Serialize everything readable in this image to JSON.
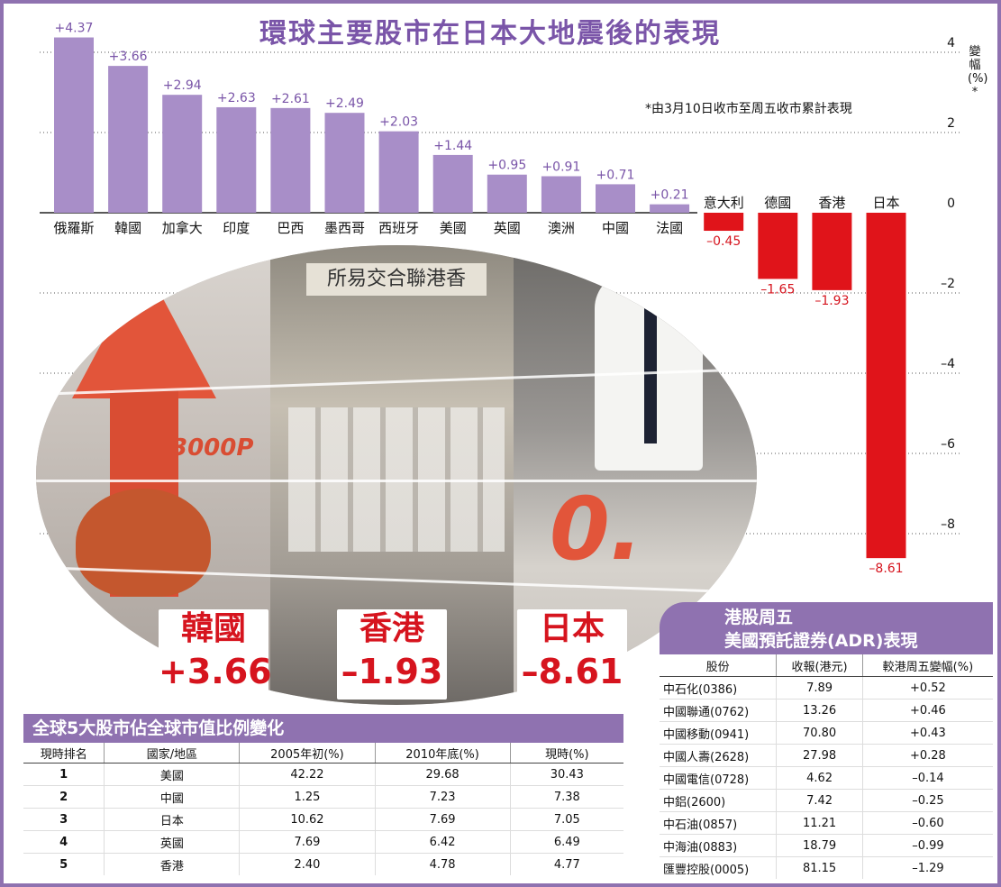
{
  "title": "環球主要股市在日本大地震後的表現",
  "note": "*由3月10日收市至周五收市累計表現",
  "colors": {
    "accent": "#8f72b0",
    "bar_positive": "#a88ec8",
    "bar_negative": "#e0141a",
    "badge_text": "#d6141e"
  },
  "chart_data": {
    "type": "bar",
    "title": "環球主要股市在日本大地震後的表現",
    "ylabel": "變幅(%)*",
    "ylim": [
      -9,
      4.5
    ],
    "yticks": [
      4,
      2,
      0,
      -2,
      -4,
      -6,
      -8
    ],
    "grid": true,
    "categories": [
      "俄羅斯",
      "韓國",
      "加拿大",
      "印度",
      "巴西",
      "墨西哥",
      "西班牙",
      "美國",
      "英國",
      "澳洲",
      "中國",
      "法國",
      "意大利",
      "德國",
      "香港",
      "日本"
    ],
    "values": [
      4.37,
      3.66,
      2.94,
      2.63,
      2.61,
      2.49,
      2.03,
      1.44,
      0.95,
      0.91,
      0.71,
      0.21,
      -0.45,
      -1.65,
      -1.93,
      -8.61
    ],
    "value_labels": [
      "+4.37",
      "+3.66",
      "+2.94",
      "+2.63",
      "+2.61",
      "+2.49",
      "+2.03",
      "+1.44",
      "+0.95",
      "+0.91",
      "+0.71",
      "+0.21",
      "–0.45",
      "–1.65",
      "–1.93",
      "–8.61"
    ],
    "tick_labels": [
      "4",
      "2",
      "0",
      "–2",
      "–4",
      "–6",
      "–8"
    ]
  },
  "collage": {
    "korea_board": "3000P",
    "hk_board": "所易交合聯港香"
  },
  "badges": [
    {
      "name": "韓國",
      "value": "+3.66"
    },
    {
      "name": "香港",
      "value": "–1.93"
    },
    {
      "name": "日本",
      "value": "–8.61"
    }
  ],
  "top5": {
    "title": "全球5大股市佔全球市值比例變化",
    "headers": [
      "現時排名",
      "國家/地區",
      "2005年初(%)",
      "2010年底(%)",
      "現時(%)"
    ],
    "rows": [
      [
        "1",
        "美國",
        "42.22",
        "29.68",
        "30.43"
      ],
      [
        "2",
        "中國",
        "1.25",
        "7.23",
        "7.38"
      ],
      [
        "3",
        "日本",
        "10.62",
        "7.69",
        "7.05"
      ],
      [
        "4",
        "英國",
        "7.69",
        "6.42",
        "6.49"
      ],
      [
        "5",
        "香港",
        "2.40",
        "4.78",
        "4.77"
      ]
    ]
  },
  "adr": {
    "title_line1": "港股周五",
    "title_line2": "美國預託證券(ADR)表現",
    "headers": [
      "股份",
      "收報(港元)",
      "較港周五變幅(%)"
    ],
    "rows": [
      [
        "中石化(0386)",
        "7.89",
        "+0.52"
      ],
      [
        "中國聯通(0762)",
        "13.26",
        "+0.46"
      ],
      [
        "中國移動(0941)",
        "70.80",
        "+0.43"
      ],
      [
        "中國人壽(2628)",
        "27.98",
        "+0.28"
      ],
      [
        "中國電信(0728)",
        "4.62",
        "–0.14"
      ],
      [
        "中鋁(2600)",
        "7.42",
        "–0.25"
      ],
      [
        "中石油(0857)",
        "11.21",
        "–0.60"
      ],
      [
        "中海油(0883)",
        "18.79",
        "–0.99"
      ],
      [
        "匯豐控股(0005)",
        "81.15",
        "–1.29"
      ]
    ]
  }
}
